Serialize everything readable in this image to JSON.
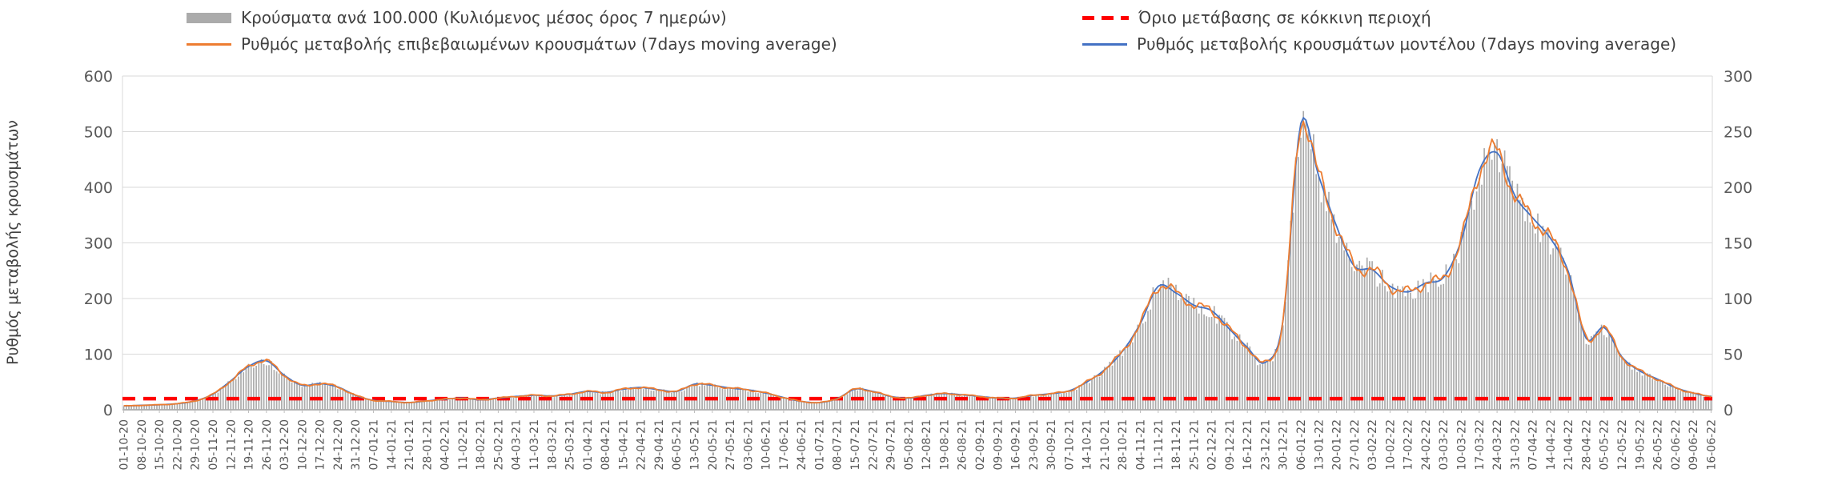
{
  "legend": {
    "items": [
      {
        "label": "Κρούσματα ανά 100.000 (Κυλιόμενος μέσος όρος 7 ημερών)",
        "swatch": "bar",
        "color": "#ABABAB"
      },
      {
        "label": "Όριο μετάβασης σε κόκκινη περιοχή",
        "swatch": "dashed-line",
        "color": "#FF0000"
      },
      {
        "label": "Ρυθμός μεταβολής επιβεβαιωμένων κρουσμάτων (7days moving average)",
        "swatch": "line",
        "color": "#ED7D31"
      },
      {
        "label": "Ρυθμός μεταβολής κρουσμάτων μοντέλου (7days moving average)",
        "swatch": "line",
        "color": "#4472C4"
      }
    ]
  },
  "chart_data": {
    "type": "bar",
    "title": "",
    "ylabel_left": "Ρυθμός μεταβολής κρουσμάτων",
    "xlabel": "",
    "grid": true,
    "legend_position": "top",
    "left_axis": {
      "min": 0,
      "max": 600,
      "step": 100,
      "ticks": [
        0,
        100,
        200,
        300,
        400,
        500,
        600
      ]
    },
    "right_axis": {
      "min": 0,
      "max": 300,
      "step": 50,
      "ticks": [
        0,
        50,
        100,
        150,
        200,
        250,
        300
      ]
    },
    "threshold_value": 20,
    "series": [
      {
        "name": "Κρούσματα ανά 100.000 (Κυλιόμενος μέσος όρος 7 ημερών)",
        "type": "bar",
        "color": "#ABABAB"
      },
      {
        "name": "Όριο μετάβασης σε κόκκινη περιοχή",
        "type": "threshold",
        "color": "#FF0000",
        "value": 20
      },
      {
        "name": "Ρυθμός μεταβολής επιβεβαιωμένων κρουσμάτων (7days moving average)",
        "type": "line",
        "color": "#ED7D31"
      },
      {
        "name": "Ρυθμός μεταβολής κρουσμάτων μοντέλου (7days moving average)",
        "type": "line",
        "color": "#4472C4"
      }
    ],
    "categories": [
      "01-10-20",
      "08-10-20",
      "15-10-20",
      "22-10-20",
      "29-10-20",
      "05-11-20",
      "12-11-20",
      "19-11-20",
      "26-11-20",
      "03-12-20",
      "10-12-20",
      "17-12-20",
      "24-12-20",
      "31-12-20",
      "07-01-21",
      "14-01-21",
      "21-01-21",
      "28-01-21",
      "04-02-21",
      "11-02-21",
      "18-02-21",
      "25-02-21",
      "04-03-21",
      "11-03-21",
      "18-03-21",
      "25-03-21",
      "01-04-21",
      "08-04-21",
      "15-04-21",
      "22-04-21",
      "29-04-21",
      "06-05-21",
      "13-05-21",
      "20-05-21",
      "27-05-21",
      "03-06-21",
      "10-06-21",
      "17-06-21",
      "24-06-21",
      "01-07-21",
      "08-07-21",
      "15-07-21",
      "22-07-21",
      "29-07-21",
      "05-08-21",
      "12-08-21",
      "19-08-21",
      "26-08-21",
      "02-09-21",
      "09-09-21",
      "16-09-21",
      "23-09-21",
      "30-09-21",
      "07-10-21",
      "14-10-21",
      "21-10-21",
      "28-10-21",
      "04-11-21",
      "11-11-21",
      "18-11-21",
      "25-11-21",
      "02-12-21",
      "09-12-21",
      "16-12-21",
      "23-12-21",
      "30-12-21",
      "06-01-22",
      "13-01-22",
      "20-01-22",
      "27-01-22",
      "03-02-22",
      "10-02-22",
      "17-02-22",
      "24-02-22",
      "03-03-22",
      "10-03-22",
      "17-03-22",
      "24-03-22",
      "31-03-22",
      "07-04-22",
      "14-04-22",
      "21-04-22",
      "28-04-22",
      "05-05-22",
      "12-05-22",
      "19-05-22",
      "26-05-22",
      "02-06-22",
      "09-06-22",
      "16-06-22"
    ],
    "weekly_values": [
      7,
      8,
      9,
      11,
      16,
      28,
      52,
      78,
      88,
      62,
      44,
      47,
      41,
      26,
      17,
      15,
      13,
      16,
      19,
      21,
      18,
      21,
      24,
      26,
      25,
      28,
      33,
      31,
      37,
      40,
      36,
      33,
      46,
      44,
      39,
      36,
      30,
      22,
      15,
      13,
      20,
      37,
      33,
      24,
      21,
      26,
      29,
      27,
      24,
      21,
      21,
      26,
      29,
      34,
      50,
      72,
      105,
      155,
      222,
      210,
      188,
      178,
      145,
      112,
      85,
      160,
      515,
      420,
      330,
      258,
      252,
      222,
      212,
      228,
      238,
      305,
      430,
      462,
      385,
      345,
      308,
      248,
      128,
      148,
      95,
      70,
      55,
      40,
      30,
      24
    ]
  }
}
